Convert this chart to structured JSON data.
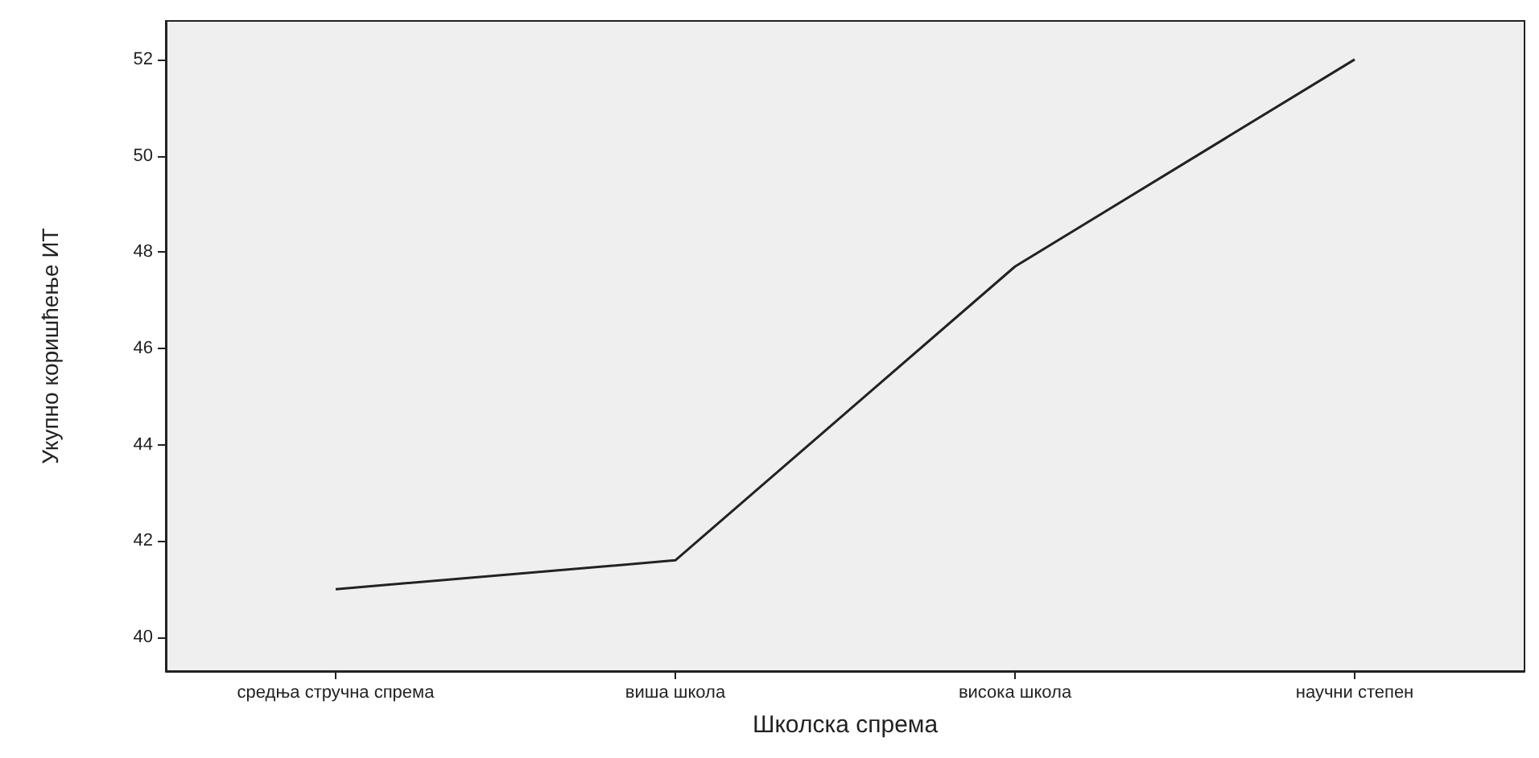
{
  "chart_data": {
    "type": "line",
    "xlabel": "Школска спрема",
    "ylabel": "Укупно коришћење ИТ",
    "categories": [
      "средња стручна спрема",
      "виша школа",
      "висока школа",
      "научни степен"
    ],
    "series": [
      {
        "color": "#222222",
        "values": [
          41.0,
          41.6,
          47.7,
          52.0
        ]
      }
    ],
    "ylim": [
      39.3,
      52.8
    ],
    "yticks": [
      40,
      42,
      44,
      46,
      48,
      50,
      52
    ],
    "grid": false,
    "marker": "none",
    "line_style": "solid"
  }
}
